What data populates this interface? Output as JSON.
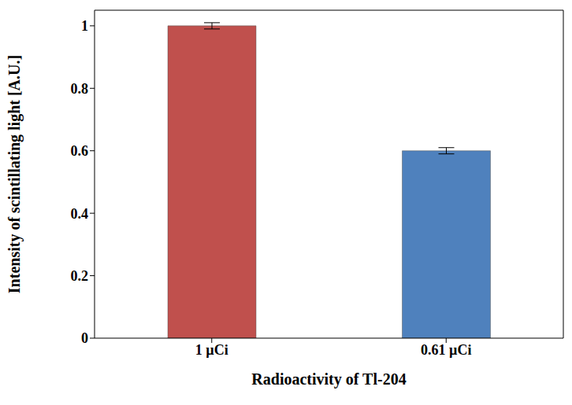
{
  "chart_data": {
    "type": "bar",
    "x_label": "Radioactivity of Tl-204",
    "y_label": "Intensity of scintillating light [A.U.]",
    "categories": [
      "1 µCi",
      "0.61 µCi"
    ],
    "values": [
      1.0,
      0.6
    ],
    "errors": [
      0.01,
      0.01
    ],
    "colors": [
      "#c0504d",
      "#4f81bd"
    ],
    "ylim": [
      0,
      1.05
    ],
    "yticks": [
      0,
      0.2,
      0.4,
      0.6,
      0.8,
      1
    ],
    "grid": false
  }
}
